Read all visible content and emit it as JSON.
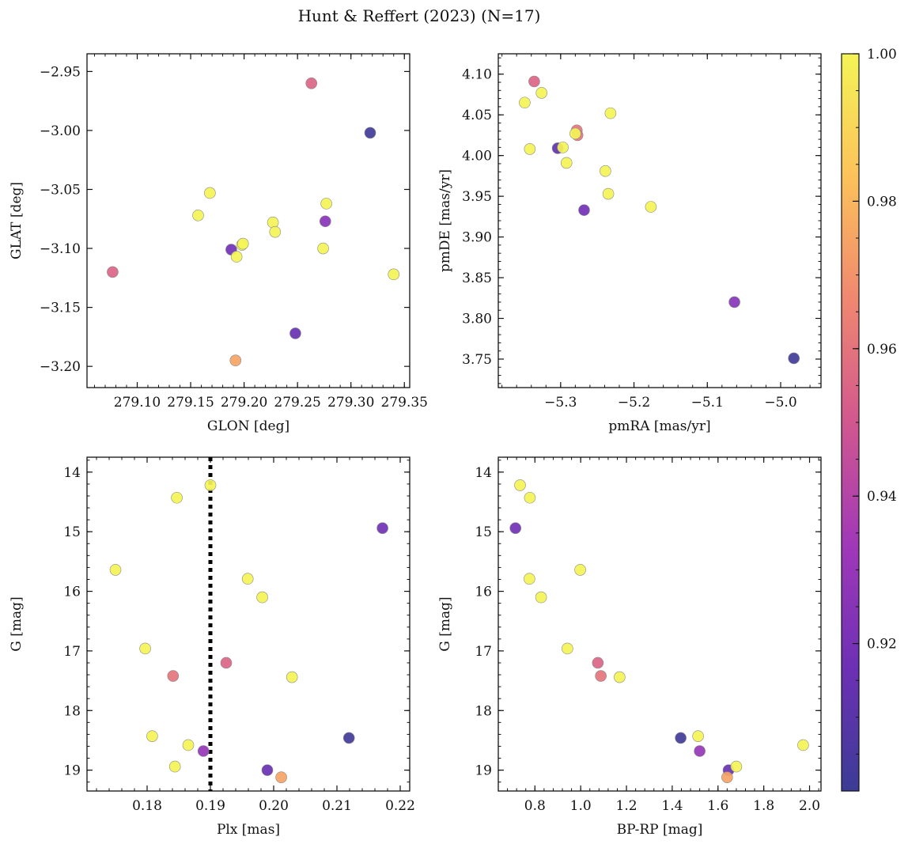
{
  "title": "Hunt & Reffert (2023) (N=17)",
  "colorbar": {
    "range": [
      0.9,
      1.0
    ],
    "ticks": [
      0.92,
      0.94,
      0.96,
      0.98,
      1.0
    ],
    "tick_labels": [
      "0.92",
      "0.94",
      "0.96",
      "0.98",
      "1.00"
    ],
    "colormap": "plasma",
    "colors": [
      "#3b3c95",
      "#6d30b5",
      "#a038b8",
      "#d1578f",
      "#f08770",
      "#fcc25a",
      "#f4f456"
    ]
  },
  "chart_data": [
    {
      "id": "glon_glat",
      "type": "scatter",
      "xlabel": "GLON [deg]",
      "ylabel": "GLAT [deg]",
      "xlim": [
        279.053,
        279.355
      ],
      "ylim": [
        -3.218,
        -2.935
      ],
      "y_inverted": false,
      "xticks": [
        279.1,
        279.15,
        279.2,
        279.25,
        279.3,
        279.35
      ],
      "xtick_labels": [
        "279.10",
        "279.15",
        "279.20",
        "279.25",
        "279.30",
        "279.35"
      ],
      "yticks": [
        -2.95,
        -3.0,
        -3.05,
        -3.1,
        -3.15,
        -3.2
      ],
      "ytick_labels": [
        "−2.95",
        "−3.00",
        "−3.05",
        "−3.10",
        "−3.15",
        "−3.20"
      ],
      "points": [
        {
          "x": 279.077,
          "y": -3.12,
          "c": 0.955
        },
        {
          "x": 279.157,
          "y": -3.072,
          "c": 1.0
        },
        {
          "x": 279.168,
          "y": -3.053,
          "c": 1.0
        },
        {
          "x": 279.188,
          "y": -3.101,
          "c": 0.918
        },
        {
          "x": 279.193,
          "y": -3.107,
          "c": 1.0
        },
        {
          "x": 279.198,
          "y": -3.097,
          "c": 1.0
        },
        {
          "x": 279.199,
          "y": -3.096,
          "c": 1.0
        },
        {
          "x": 279.192,
          "y": -3.195,
          "c": 0.975
        },
        {
          "x": 279.227,
          "y": -3.078,
          "c": 1.0
        },
        {
          "x": 279.229,
          "y": -3.086,
          "c": 1.0
        },
        {
          "x": 279.248,
          "y": -3.172,
          "c": 0.915
        },
        {
          "x": 279.263,
          "y": -2.96,
          "c": 0.955
        },
        {
          "x": 279.274,
          "y": -3.1,
          "c": 1.0
        },
        {
          "x": 279.276,
          "y": -3.077,
          "c": 0.925
        },
        {
          "x": 279.277,
          "y": -3.062,
          "c": 1.0
        },
        {
          "x": 279.318,
          "y": -3.002,
          "c": 0.902
        },
        {
          "x": 279.34,
          "y": -3.122,
          "c": 1.0
        }
      ]
    },
    {
      "id": "pm",
      "type": "scatter",
      "xlabel": "pmRA [mas/yr]",
      "ylabel": "pmDE [mas/yr]",
      "xlim": [
        -5.385,
        -4.945
      ],
      "ylim": [
        3.715,
        4.125
      ],
      "y_inverted": false,
      "xticks": [
        -5.3,
        -5.2,
        -5.1,
        -5.0
      ],
      "xtick_labels": [
        "−5.3",
        "−5.2",
        "−5.1",
        "−5.0"
      ],
      "yticks": [
        3.75,
        3.8,
        3.85,
        3.9,
        3.95,
        4.0,
        4.05,
        4.1
      ],
      "ytick_labels": [
        "3.75",
        "3.80",
        "3.85",
        "3.90",
        "3.95",
        "4.00",
        "4.05",
        "4.10"
      ],
      "points": [
        {
          "x": -5.349,
          "y": 4.065,
          "c": 1.0
        },
        {
          "x": -5.336,
          "y": 4.091,
          "c": 0.955
        },
        {
          "x": -5.342,
          "y": 4.008,
          "c": 1.0
        },
        {
          "x": -5.326,
          "y": 4.077,
          "c": 1.0
        },
        {
          "x": -5.304,
          "y": 4.009,
          "c": 0.912
        },
        {
          "x": -5.297,
          "y": 4.01,
          "c": 1.0
        },
        {
          "x": -5.292,
          "y": 3.991,
          "c": 1.0
        },
        {
          "x": -5.278,
          "y": 4.031,
          "c": 0.96
        },
        {
          "x": -5.277,
          "y": 4.025,
          "c": 0.96
        },
        {
          "x": -5.28,
          "y": 4.027,
          "c": 1.0
        },
        {
          "x": -5.268,
          "y": 3.933,
          "c": 0.918
        },
        {
          "x": -5.239,
          "y": 3.981,
          "c": 1.0
        },
        {
          "x": -5.235,
          "y": 3.953,
          "c": 1.0
        },
        {
          "x": -5.232,
          "y": 4.052,
          "c": 1.0
        },
        {
          "x": -5.177,
          "y": 3.937,
          "c": 1.0
        },
        {
          "x": -5.063,
          "y": 3.82,
          "c": 0.925
        },
        {
          "x": -4.982,
          "y": 3.751,
          "c": 0.902
        }
      ]
    },
    {
      "id": "plx_g",
      "type": "scatter",
      "xlabel": "Plx [mas]",
      "ylabel": "G [mag]",
      "xlim": [
        0.1705,
        0.2215
      ],
      "ylim": [
        13.75,
        19.35
      ],
      "y_inverted": true,
      "xticks": [
        0.18,
        0.19,
        0.2,
        0.21,
        0.22
      ],
      "xtick_labels": [
        "0.18",
        "0.19",
        "0.20",
        "0.21",
        "0.22"
      ],
      "yticks": [
        14,
        15,
        16,
        17,
        18,
        19
      ],
      "ytick_labels": [
        "14",
        "15",
        "16",
        "17",
        "18",
        "19"
      ],
      "vline": {
        "x": 0.19,
        "style": "dotted"
      },
      "points": [
        {
          "x": 0.175,
          "y": 15.64,
          "c": 1.0
        },
        {
          "x": 0.1797,
          "y": 16.96,
          "c": 1.0
        },
        {
          "x": 0.1808,
          "y": 18.43,
          "c": 1.0
        },
        {
          "x": 0.1841,
          "y": 17.42,
          "c": 0.96
        },
        {
          "x": 0.1844,
          "y": 18.94,
          "c": 1.0
        },
        {
          "x": 0.1847,
          "y": 14.43,
          "c": 1.0
        },
        {
          "x": 0.1865,
          "y": 18.58,
          "c": 1.0
        },
        {
          "x": 0.1889,
          "y": 18.68,
          "c": 0.93
        },
        {
          "x": 0.19,
          "y": 14.22,
          "c": 1.0
        },
        {
          "x": 0.1925,
          "y": 17.2,
          "c": 0.955
        },
        {
          "x": 0.1959,
          "y": 15.79,
          "c": 1.0
        },
        {
          "x": 0.1982,
          "y": 16.1,
          "c": 1.0
        },
        {
          "x": 0.199,
          "y": 19.0,
          "c": 0.915
        },
        {
          "x": 0.2012,
          "y": 19.12,
          "c": 0.975
        },
        {
          "x": 0.2029,
          "y": 17.44,
          "c": 1.0
        },
        {
          "x": 0.2119,
          "y": 18.46,
          "c": 0.902
        },
        {
          "x": 0.2172,
          "y": 14.94,
          "c": 0.918
        }
      ]
    },
    {
      "id": "bprp_g",
      "type": "scatter",
      "xlabel": "BP-RP [mag]",
      "ylabel": "G [mag]",
      "xlim": [
        0.64,
        2.05
      ],
      "ylim": [
        13.75,
        19.35
      ],
      "y_inverted": true,
      "xticks": [
        0.8,
        1.0,
        1.2,
        1.4,
        1.6,
        1.8,
        2.0
      ],
      "xtick_labels": [
        "0.8",
        "1.0",
        "1.2",
        "1.4",
        "1.6",
        "1.8",
        "2.0"
      ],
      "yticks": [
        14,
        15,
        16,
        17,
        18,
        19
      ],
      "ytick_labels": [
        "14",
        "15",
        "16",
        "17",
        "18",
        "19"
      ],
      "points": [
        {
          "x": 0.735,
          "y": 14.22,
          "c": 1.0
        },
        {
          "x": 0.778,
          "y": 14.43,
          "c": 1.0
        },
        {
          "x": 0.715,
          "y": 14.94,
          "c": 0.918
        },
        {
          "x": 0.998,
          "y": 15.64,
          "c": 1.0
        },
        {
          "x": 0.776,
          "y": 15.79,
          "c": 1.0
        },
        {
          "x": 0.827,
          "y": 16.1,
          "c": 1.0
        },
        {
          "x": 0.942,
          "y": 16.96,
          "c": 1.0
        },
        {
          "x": 1.075,
          "y": 17.2,
          "c": 0.955
        },
        {
          "x": 1.088,
          "y": 17.42,
          "c": 0.96
        },
        {
          "x": 1.17,
          "y": 17.44,
          "c": 1.0
        },
        {
          "x": 1.437,
          "y": 18.46,
          "c": 0.902
        },
        {
          "x": 1.513,
          "y": 18.43,
          "c": 1.0
        },
        {
          "x": 1.52,
          "y": 18.68,
          "c": 0.93
        },
        {
          "x": 1.646,
          "y": 19.0,
          "c": 0.915
        },
        {
          "x": 1.68,
          "y": 18.94,
          "c": 1.0
        },
        {
          "x": 1.64,
          "y": 19.12,
          "c": 0.975
        },
        {
          "x": 1.972,
          "y": 18.58,
          "c": 1.0
        }
      ]
    }
  ]
}
